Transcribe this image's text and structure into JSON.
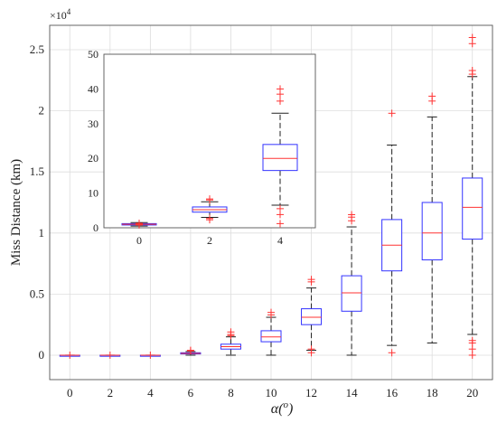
{
  "chart_data": [
    {
      "type": "box",
      "xlabel": "α(o)",
      "ylabel": "Miss Distance (km)",
      "y_exponent_label": "×10",
      "y_exponent_power": "4",
      "grid": true,
      "x": [
        0,
        2,
        4,
        6,
        8,
        10,
        12,
        14,
        16,
        18,
        20
      ],
      "x_tick_labels": [
        "0",
        "2",
        "4",
        "6",
        "8",
        "10",
        "12",
        "14",
        "16",
        "18",
        "20"
      ],
      "ylim": [
        -0.2,
        2.7
      ],
      "y_ticks": [
        0,
        0.5,
        1,
        1.5,
        2,
        2.5
      ],
      "y_tick_labels": [
        "0",
        "0.5",
        "1",
        "1.5",
        "2",
        "2.5"
      ],
      "units_note": "y in units of 1e4 km",
      "boxes": [
        {
          "x": 0,
          "q1": 0.0,
          "median": 0.0,
          "q3": 0.0,
          "whisker_low": 0.0,
          "whisker_high": 0.0,
          "outliers": [
            0.0
          ]
        },
        {
          "x": 2,
          "q1": 0.0,
          "median": 0.0,
          "q3": 0.0,
          "whisker_low": 0.0,
          "whisker_high": 0.0,
          "outliers": [
            0.0
          ]
        },
        {
          "x": 4,
          "q1": 0.0,
          "median": 0.0,
          "q3": 0.0,
          "whisker_low": 0.0,
          "whisker_high": 0.0,
          "outliers": [
            0.0
          ]
        },
        {
          "x": 6,
          "q1": 0.01,
          "median": 0.015,
          "q3": 0.02,
          "whisker_low": 0.0,
          "whisker_high": 0.03,
          "outliers": [
            0.035,
            0.04
          ]
        },
        {
          "x": 8,
          "q1": 0.05,
          "median": 0.07,
          "q3": 0.09,
          "whisker_low": 0.0,
          "whisker_high": 0.15,
          "outliers": [
            0.16,
            0.17,
            0.19
          ]
        },
        {
          "x": 10,
          "q1": 0.11,
          "median": 0.15,
          "q3": 0.2,
          "whisker_low": 0.0,
          "whisker_high": 0.31,
          "outliers": [
            0.33,
            0.35
          ]
        },
        {
          "x": 12,
          "q1": 0.25,
          "median": 0.31,
          "q3": 0.38,
          "whisker_low": 0.04,
          "whisker_high": 0.55,
          "outliers": [
            0.02,
            0.05,
            0.6,
            0.62
          ]
        },
        {
          "x": 14,
          "q1": 0.36,
          "median": 0.51,
          "q3": 0.65,
          "whisker_low": 0.0,
          "whisker_high": 1.05,
          "outliers": [
            1.1,
            1.13,
            1.15
          ]
        },
        {
          "x": 16,
          "q1": 0.69,
          "median": 0.9,
          "q3": 1.11,
          "whisker_low": 0.08,
          "whisker_high": 1.72,
          "outliers": [
            0.02,
            1.98
          ]
        },
        {
          "x": 18,
          "q1": 0.78,
          "median": 1.0,
          "q3": 1.25,
          "whisker_low": 0.1,
          "whisker_high": 1.95,
          "outliers": [
            2.08,
            2.12
          ]
        },
        {
          "x": 20,
          "q1": 0.95,
          "median": 1.21,
          "q3": 1.45,
          "whisker_low": 0.17,
          "whisker_high": 2.28,
          "outliers": [
            0.0,
            0.05,
            0.1,
            0.12,
            2.3,
            2.33,
            2.55,
            2.6
          ]
        }
      ]
    },
    {
      "type": "box",
      "inset": true,
      "x": [
        0,
        2,
        4
      ],
      "x_tick_labels": [
        "0",
        "2",
        "4"
      ],
      "ylim": [
        0,
        50
      ],
      "y_ticks": [
        0,
        10,
        20,
        30,
        40,
        50
      ],
      "y_tick_labels": [
        "0",
        "10",
        "20",
        "30",
        "40",
        "50"
      ],
      "boxes": [
        {
          "x": 0,
          "q1": 0.8,
          "median": 1.0,
          "q3": 1.2,
          "whisker_low": 0.5,
          "whisker_high": 1.5,
          "outliers": [
            0.8,
            1.0,
            1.1,
            1.3
          ]
        },
        {
          "x": 2,
          "q1": 4.5,
          "median": 5.2,
          "q3": 6.0,
          "whisker_low": 3.0,
          "whisker_high": 7.5,
          "outliers": [
            2.3,
            2.7,
            8.0,
            8.3
          ]
        },
        {
          "x": 4,
          "q1": 16.5,
          "median": 20.0,
          "q3": 24.0,
          "whisker_low": 6.5,
          "whisker_high": 33.0,
          "outliers": [
            1.2,
            3.8,
            5.5,
            36.5,
            38.5,
            40.0
          ]
        }
      ]
    }
  ]
}
